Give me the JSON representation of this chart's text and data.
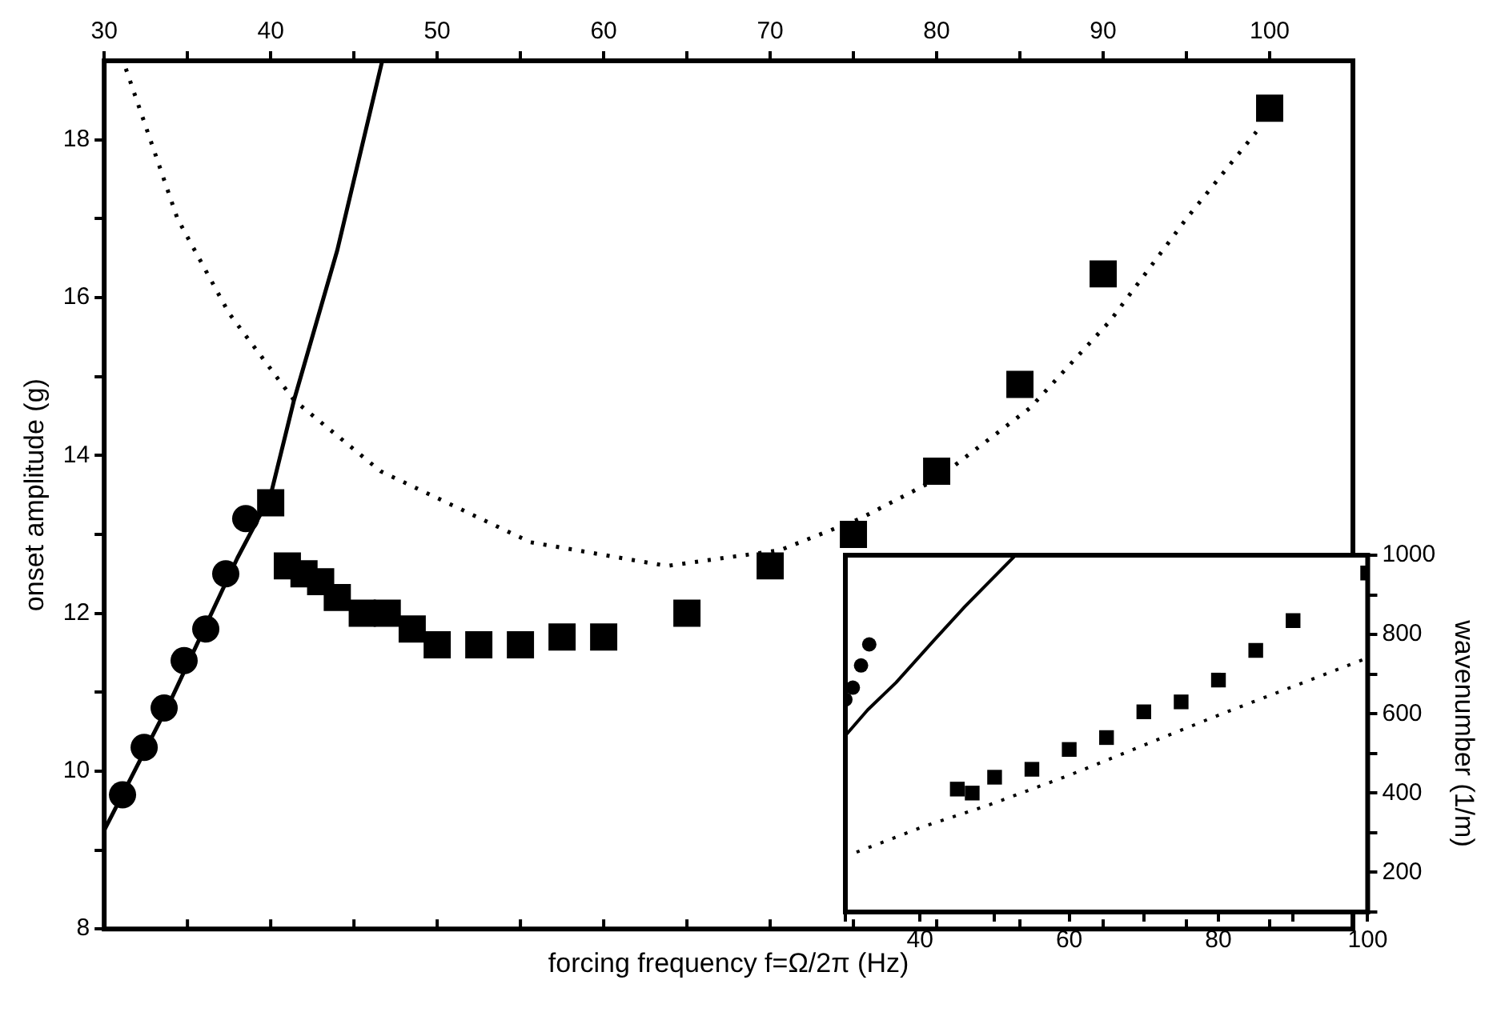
{
  "chart_data": [
    {
      "type": "scatter",
      "xlabel": "forcing frequency f=Ω/2π (Hz)",
      "ylabel": "onset amplitude (g)",
      "xlim": [
        30,
        105
      ],
      "ylim": [
        8,
        19
      ],
      "xticks": [
        30,
        {
          "value": 35,
          "label": null
        },
        40,
        {
          "value": 45,
          "label": null
        },
        50,
        {
          "value": 55,
          "label": null
        },
        60,
        {
          "value": 65,
          "label": null
        },
        70,
        {
          "value": 75,
          "label": null
        },
        80,
        {
          "value": 85,
          "label": null
        },
        90,
        {
          "value": 95,
          "label": null
        },
        100
      ],
      "yticks": [
        8,
        {
          "value": 9,
          "label": null
        },
        10,
        {
          "value": 11,
          "label": null
        },
        12,
        {
          "value": 13,
          "label": null
        },
        14,
        {
          "value": 15,
          "label": null
        },
        16,
        {
          "value": 17,
          "label": null
        },
        18
      ],
      "grid": false,
      "legend": false,
      "series": [
        {
          "type": "scatter",
          "marker": "circle",
          "color": "#000000",
          "x": [
            31.1,
            32.4,
            33.6,
            34.8,
            36.1,
            37.3,
            38.5
          ],
          "values": [
            9.7,
            10.3,
            10.8,
            11.4,
            11.8,
            12.5,
            13.2
          ]
        },
        {
          "type": "scatter",
          "marker": "square",
          "color": "#000000",
          "x": [
            40,
            41,
            42,
            43,
            44,
            45.5,
            47,
            48.5,
            50,
            52.5,
            55,
            57.5,
            60,
            65,
            70,
            75,
            80,
            85,
            90,
            100
          ],
          "values": [
            13.4,
            12.6,
            12.5,
            12.4,
            12.2,
            12.0,
            12.0,
            11.8,
            11.6,
            11.6,
            11.6,
            11.7,
            11.7,
            12.0,
            12.6,
            13.0,
            13.8,
            14.9,
            16.3,
            18.4
          ]
        },
        {
          "type": "line",
          "marker": "none",
          "line_style": "solid",
          "color": "#000000",
          "x": [
            30,
            34,
            38,
            40,
            41.4,
            44,
            46.7
          ],
          "values": [
            9.25,
            10.9,
            12.7,
            13.5,
            14.7,
            16.6,
            19
          ]
        },
        {
          "type": "line",
          "marker": "none",
          "line_style": "dotted",
          "color": "#000000",
          "x": [
            31.3,
            34.4,
            37.5,
            41.4,
            46.6,
            55.6,
            63.8,
            70.6,
            75.4,
            80,
            85.6,
            90.4,
            95,
            99.2
          ],
          "values": [
            18.9,
            17.0,
            15.8,
            14.7,
            13.8,
            12.9,
            12.6,
            12.8,
            13.2,
            13.7,
            14.6,
            15.7,
            17.0,
            18.1
          ]
        }
      ]
    },
    {
      "type": "scatter",
      "ylabel": "wavenumber (1/m)",
      "xlim": [
        30,
        100
      ],
      "ylim": [
        100,
        1000
      ],
      "xticks": [
        {
          "value": 30,
          "label": null
        },
        40,
        {
          "value": 50,
          "label": null
        },
        60,
        {
          "value": 70,
          "label": null
        },
        80,
        {
          "value": 90,
          "label": null
        },
        100
      ],
      "yticks": [
        {
          "value": 100,
          "label": null
        },
        200,
        {
          "value": 300,
          "label": null
        },
        400,
        {
          "value": 500,
          "label": null
        },
        600,
        {
          "value": 700,
          "label": null
        },
        800,
        {
          "value": 900,
          "label": null
        },
        1000
      ],
      "grid": false,
      "legend": false,
      "series": [
        {
          "type": "scatter",
          "marker": "circle",
          "color": "#000000",
          "x": [
            30,
            31,
            32.1,
            33.2
          ],
          "values": [
            636,
            666,
            722,
            775
          ]
        },
        {
          "type": "scatter",
          "marker": "square",
          "color": "#000000",
          "x": [
            45,
            47,
            50,
            55,
            60,
            65,
            70,
            75,
            80,
            85,
            90,
            100
          ],
          "values": [
            410,
            400,
            440,
            460,
            510,
            540,
            605,
            630,
            685,
            760,
            835,
            955
          ]
        },
        {
          "type": "line",
          "marker": "none",
          "line_style": "solid",
          "color": "#000000",
          "x": [
            30,
            33,
            36.8,
            41.9,
            46,
            52.8
          ],
          "values": [
            545,
            610,
            679,
            786,
            870,
            1000
          ]
        },
        {
          "type": "line",
          "marker": "none",
          "line_style": "dotted",
          "color": "#000000",
          "x": [
            31.5,
            40.7,
            49.4,
            60,
            80.2,
            99.7
          ],
          "values": [
            251,
            317,
            371,
            445,
            598,
            739
          ]
        }
      ]
    }
  ]
}
